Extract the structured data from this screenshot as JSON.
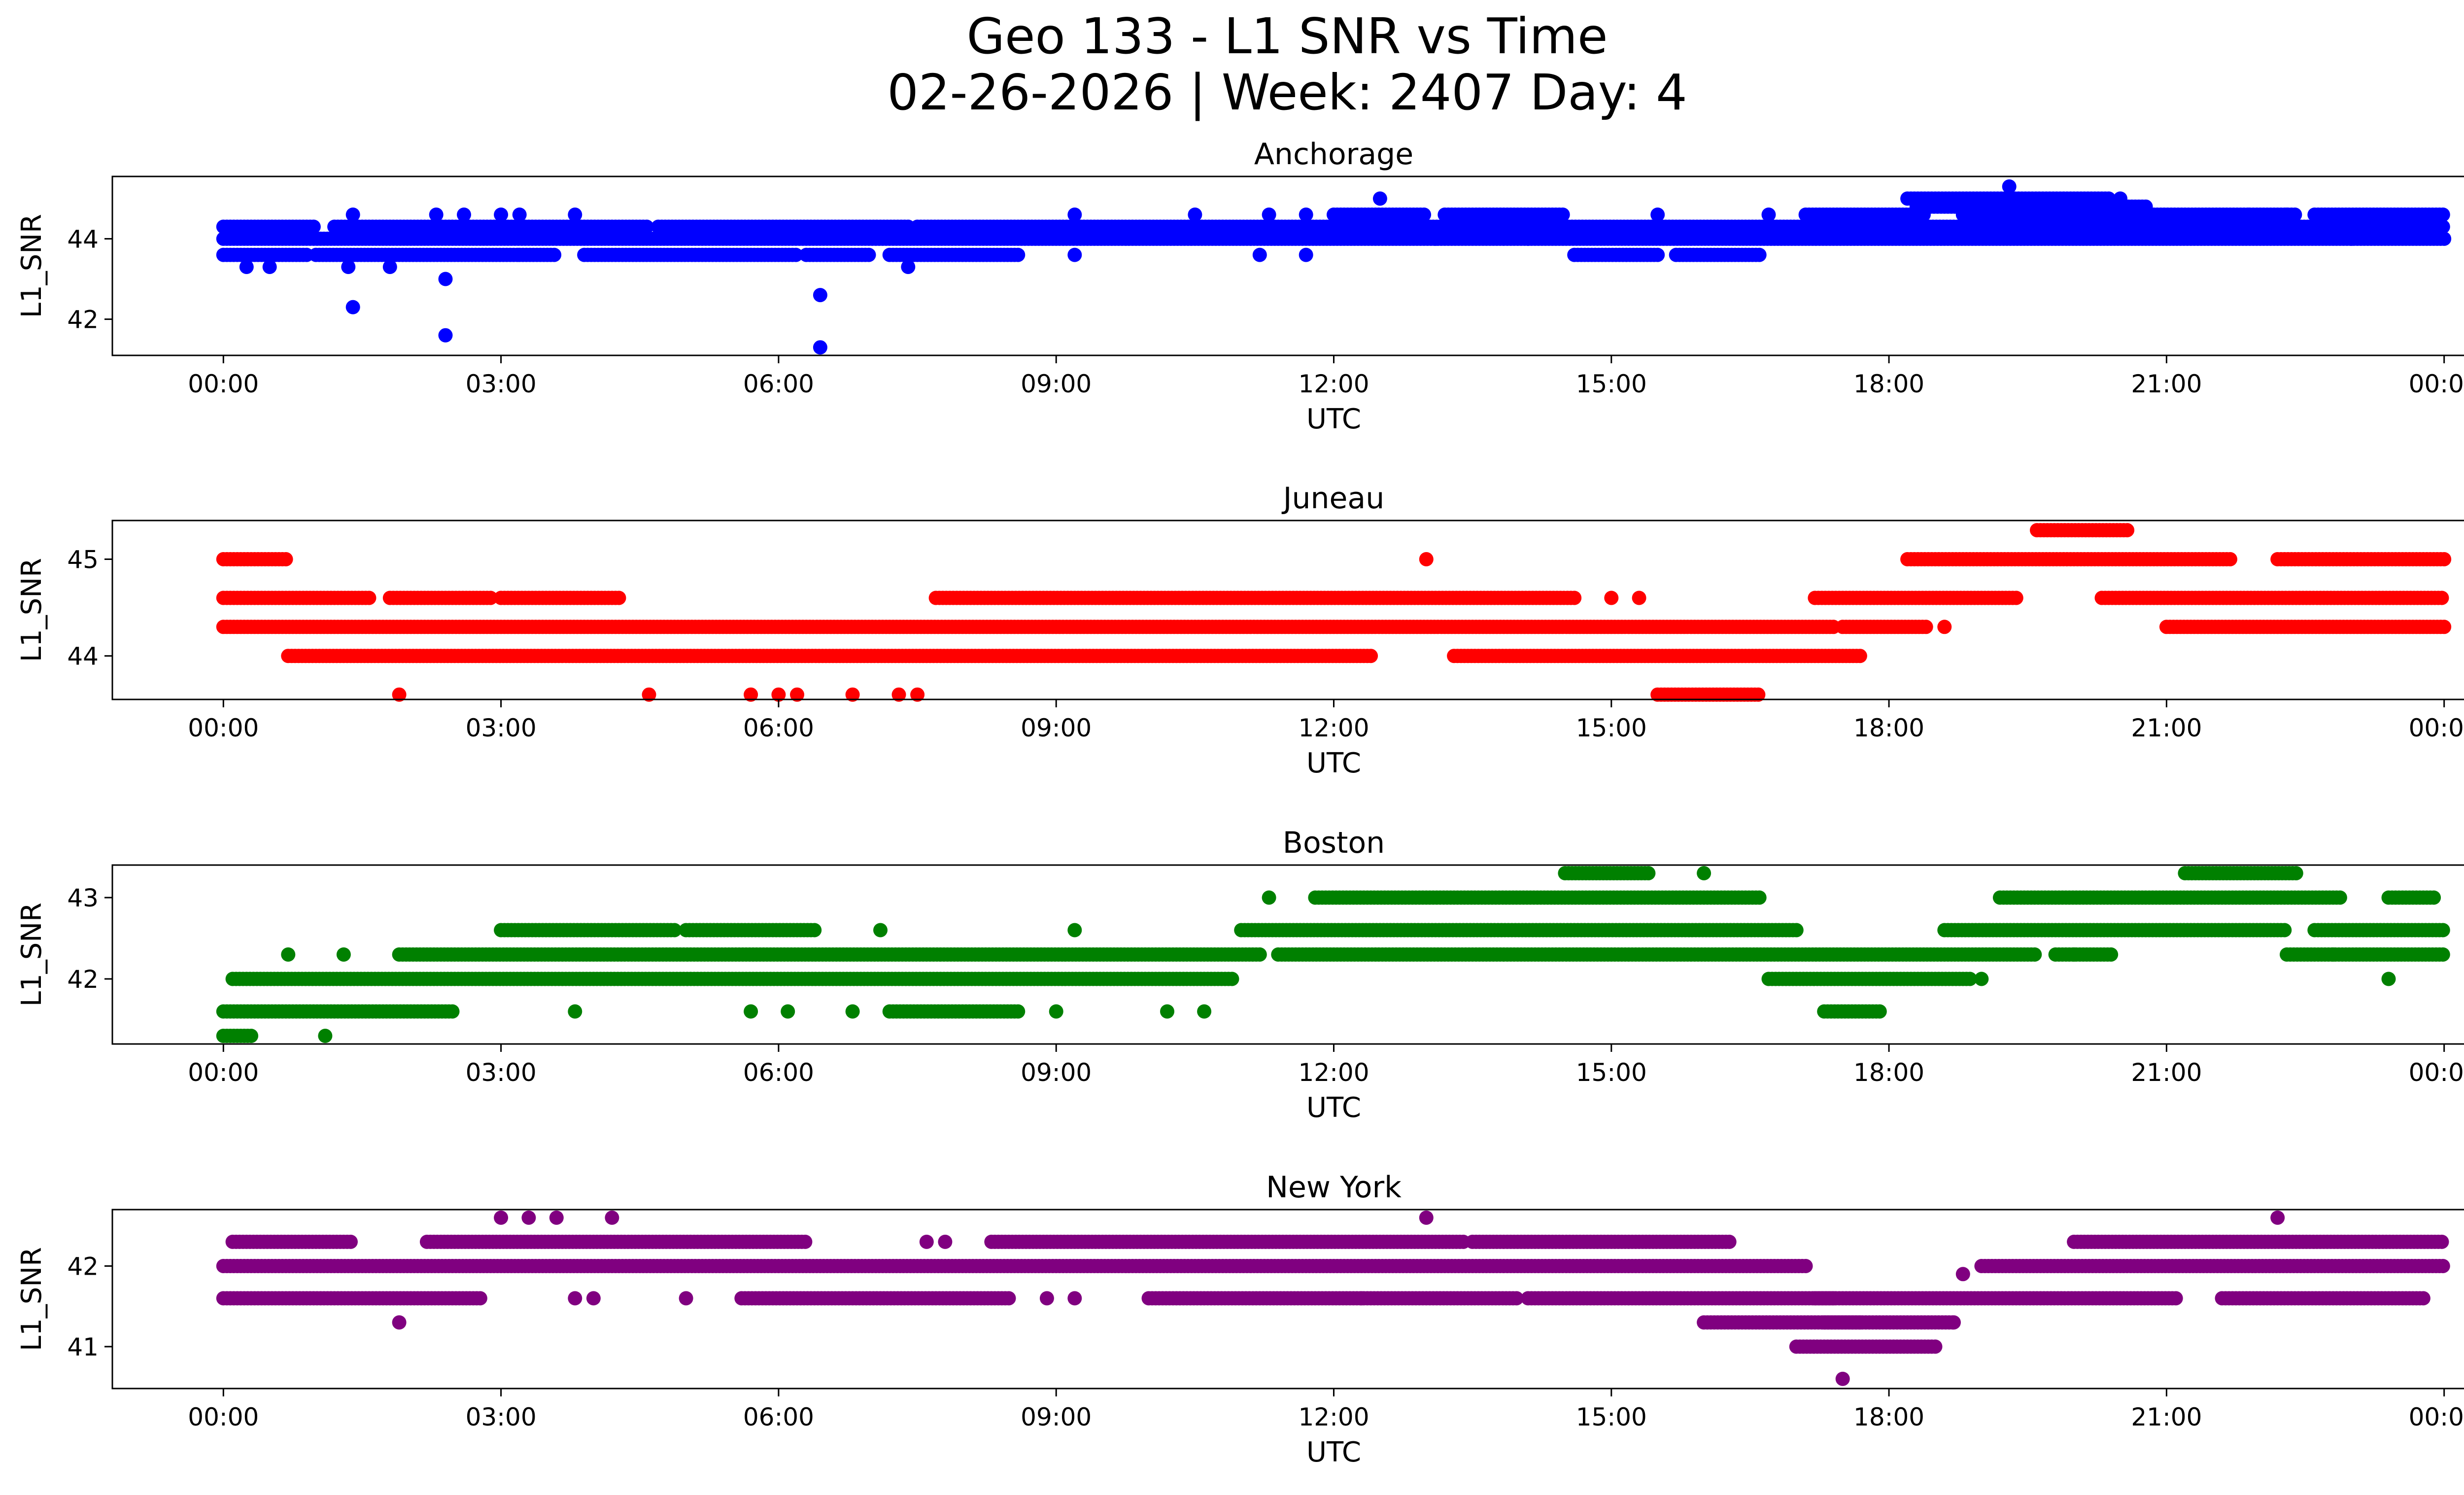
{
  "figure": {
    "title_line1": "Geo 133 - L1 SNR vs Time",
    "title_line2": "02-26-2026 | Week: 2407 Day: 4"
  },
  "chart_data": [
    {
      "type": "scatter",
      "title": "Anchorage",
      "xlabel": "UTC",
      "ylabel": "L1_SNR",
      "color": "#0000ff",
      "xlim": [
        -1.2,
        25.2
      ],
      "ylim": [
        41.1,
        45.55
      ],
      "xticks": [
        0,
        3,
        6,
        9,
        12,
        15,
        18,
        21,
        24
      ],
      "xtick_labels": [
        "00:00",
        "03:00",
        "06:00",
        "09:00",
        "12:00",
        "15:00",
        "18:00",
        "21:00",
        "00:00"
      ],
      "yticks": [
        42,
        44
      ],
      "bands": [
        {
          "y": 44.3,
          "segments": [
            [
              0,
              1.0
            ],
            [
              1.2,
              4.6
            ],
            [
              4.7,
              7.4
            ],
            [
              7.5,
              12.3
            ],
            [
              12.4,
              24
            ]
          ]
        },
        {
          "y": 44.0,
          "segments": [
            [
              0,
              24
            ]
          ]
        },
        {
          "y": 43.6,
          "segments": [
            [
              0,
              0.9
            ],
            [
              1.0,
              3.2
            ],
            [
              3.2,
              3.6
            ],
            [
              3.9,
              6.2
            ],
            [
              6.3,
              7.0
            ],
            [
              7.2,
              8.6
            ],
            [
              14.6,
              15.5
            ],
            [
              15.7,
              16.6
            ]
          ]
        },
        {
          "y": 44.6,
          "segments": [
            [
              12.0,
              13.0
            ],
            [
              13.2,
              14.5
            ],
            [
              17.1,
              18.4
            ],
            [
              18.8,
              21.9
            ],
            [
              21.9,
              22.4
            ],
            [
              22.6,
              24
            ]
          ]
        },
        {
          "y": 45.0,
          "segments": [
            [
              18.2,
              20.4
            ]
          ]
        },
        {
          "y": 44.8,
          "segments": [
            [
              18.3,
              20.8
            ]
          ]
        }
      ],
      "points": [
        {
          "x": 0.25,
          "y": 43.3
        },
        {
          "x": 0.5,
          "y": 43.3
        },
        {
          "x": 1.35,
          "y": 43.3
        },
        {
          "x": 1.8,
          "y": 43.3
        },
        {
          "x": 7.4,
          "y": 43.3
        },
        {
          "x": 1.4,
          "y": 42.3
        },
        {
          "x": 2.4,
          "y": 43.0
        },
        {
          "x": 2.4,
          "y": 41.6
        },
        {
          "x": 6.45,
          "y": 42.6
        },
        {
          "x": 6.45,
          "y": 41.3
        },
        {
          "x": 1.4,
          "y": 44.6
        },
        {
          "x": 2.3,
          "y": 44.6
        },
        {
          "x": 2.6,
          "y": 44.6
        },
        {
          "x": 3.0,
          "y": 44.6
        },
        {
          "x": 3.2,
          "y": 44.6
        },
        {
          "x": 3.8,
          "y": 44.6
        },
        {
          "x": 9.2,
          "y": 44.6
        },
        {
          "x": 10.5,
          "y": 44.6
        },
        {
          "x": 11.3,
          "y": 44.6
        },
        {
          "x": 11.7,
          "y": 44.6
        },
        {
          "x": 12.5,
          "y": 45.0
        },
        {
          "x": 15.5,
          "y": 44.6
        },
        {
          "x": 16.7,
          "y": 44.6
        },
        {
          "x": 19.3,
          "y": 45.3
        },
        {
          "x": 20.5,
          "y": 45.0
        },
        {
          "x": 20.1,
          "y": 44.3
        },
        {
          "x": 22.3,
          "y": 44.6
        },
        {
          "x": 11.2,
          "y": 43.6
        },
        {
          "x": 11.7,
          "y": 43.6
        },
        {
          "x": 9.2,
          "y": 43.6
        },
        {
          "x": 13.1,
          "y": 44.0
        },
        {
          "x": 14.1,
          "y": 44.0
        },
        {
          "x": 19.5,
          "y": 44.3
        },
        {
          "x": 23.0,
          "y": 44.0
        }
      ]
    },
    {
      "type": "scatter",
      "title": "Juneau",
      "xlabel": "UTC",
      "ylabel": "L1_SNR",
      "color": "#ff0000",
      "xlim": [
        -1.2,
        25.2
      ],
      "ylim": [
        43.55,
        45.4
      ],
      "xticks": [
        0,
        3,
        6,
        9,
        12,
        15,
        18,
        21,
        24
      ],
      "xtick_labels": [
        "00:00",
        "03:00",
        "06:00",
        "09:00",
        "12:00",
        "15:00",
        "18:00",
        "21:00",
        "00:00"
      ],
      "yticks": [
        44,
        45
      ],
      "bands": [
        {
          "y": 44.3,
          "segments": [
            [
              0,
              17.4
            ],
            [
              17.5,
              18.4
            ],
            [
              21.0,
              24
            ]
          ]
        },
        {
          "y": 44.0,
          "segments": [
            [
              0.7,
              12.4
            ],
            [
              13.3,
              17.7
            ]
          ]
        },
        {
          "y": 44.6,
          "segments": [
            [
              0,
              1.6
            ],
            [
              1.8,
              2.9
            ],
            [
              3.0,
              4.3
            ],
            [
              7.7,
              14.6
            ],
            [
              17.2,
              19.4
            ],
            [
              20.3,
              24
            ]
          ]
        },
        {
          "y": 45.0,
          "segments": [
            [
              0,
              0.7
            ],
            [
              18.2,
              21.7
            ],
            [
              22.2,
              24
            ]
          ]
        },
        {
          "y": 45.3,
          "segments": [
            [
              19.6,
              20.6
            ]
          ]
        },
        {
          "y": 43.6,
          "segments": [
            [
              15.5,
              16.6
            ]
          ]
        }
      ],
      "points": [
        {
          "x": 1.9,
          "y": 43.6
        },
        {
          "x": 4.6,
          "y": 43.6
        },
        {
          "x": 5.7,
          "y": 43.6
        },
        {
          "x": 6.0,
          "y": 43.6
        },
        {
          "x": 6.2,
          "y": 43.6
        },
        {
          "x": 6.8,
          "y": 43.6
        },
        {
          "x": 7.3,
          "y": 43.6
        },
        {
          "x": 7.5,
          "y": 43.6
        },
        {
          "x": 13.0,
          "y": 45.0
        },
        {
          "x": 18.6,
          "y": 44.3
        },
        {
          "x": 15.0,
          "y": 44.6
        },
        {
          "x": 15.3,
          "y": 44.6
        }
      ]
    },
    {
      "type": "scatter",
      "title": "Boston",
      "xlabel": "UTC",
      "ylabel": "L1_SNR",
      "color": "#008000",
      "xlim": [
        -1.2,
        25.2
      ],
      "ylim": [
        41.2,
        43.4
      ],
      "xticks": [
        0,
        3,
        6,
        9,
        12,
        15,
        18,
        21,
        24
      ],
      "xtick_labels": [
        "00:00",
        "03:00",
        "06:00",
        "09:00",
        "12:00",
        "15:00",
        "18:00",
        "21:00",
        "00:00"
      ],
      "yticks": [
        42,
        43
      ],
      "bands": [
        {
          "y": 42.0,
          "segments": [
            [
              0.1,
              10.9
            ],
            [
              16.7,
              18.9
            ]
          ]
        },
        {
          "y": 41.6,
          "segments": [
            [
              0,
              2.5
            ],
            [
              7.2,
              8.6
            ],
            [
              17.3,
              17.9
            ]
          ]
        },
        {
          "y": 41.3,
          "segments": [
            [
              0,
              0.3
            ]
          ]
        },
        {
          "y": 42.3,
          "segments": [
            [
              1.9,
              11.2
            ],
            [
              11.4,
              19.6
            ],
            [
              19.8,
              20.4
            ],
            [
              22.3,
              24
            ]
          ]
        },
        {
          "y": 42.6,
          "segments": [
            [
              3.0,
              4.9
            ],
            [
              5.0,
              6.4
            ],
            [
              11.0,
              17.0
            ],
            [
              18.6,
              22.3
            ],
            [
              22.6,
              24
            ]
          ]
        },
        {
          "y": 43.0,
          "segments": [
            [
              11.8,
              16.6
            ],
            [
              19.2,
              22.9
            ],
            [
              23.4,
              23.9
            ]
          ]
        },
        {
          "y": 43.3,
          "segments": [
            [
              14.5,
              15.4
            ],
            [
              21.2,
              22.4
            ]
          ]
        }
      ],
      "points": [
        {
          "x": 0.7,
          "y": 42.3
        },
        {
          "x": 1.3,
          "y": 42.3
        },
        {
          "x": 1.1,
          "y": 41.3
        },
        {
          "x": 3.8,
          "y": 41.6
        },
        {
          "x": 5.7,
          "y": 41.6
        },
        {
          "x": 6.1,
          "y": 41.6
        },
        {
          "x": 6.8,
          "y": 41.6
        },
        {
          "x": 9.0,
          "y": 41.6
        },
        {
          "x": 10.2,
          "y": 41.6
        },
        {
          "x": 10.6,
          "y": 41.6
        },
        {
          "x": 11.3,
          "y": 43.0
        },
        {
          "x": 16.0,
          "y": 43.3
        },
        {
          "x": 7.1,
          "y": 42.6
        },
        {
          "x": 9.2,
          "y": 42.6
        },
        {
          "x": 23.4,
          "y": 42.0
        },
        {
          "x": 20.0,
          "y": 42.3
        },
        {
          "x": 22.8,
          "y": 42.3
        },
        {
          "x": 19.0,
          "y": 42.0
        }
      ]
    },
    {
      "type": "scatter",
      "title": "New York",
      "xlabel": "UTC",
      "ylabel": "L1_SNR",
      "color": "#800080",
      "xlim": [
        -1.2,
        25.2
      ],
      "ylim": [
        40.48,
        42.7
      ],
      "xticks": [
        0,
        3,
        6,
        9,
        12,
        15,
        18,
        21,
        24
      ],
      "xtick_labels": [
        "00:00",
        "03:00",
        "06:00",
        "09:00",
        "12:00",
        "15:00",
        "18:00",
        "21:00",
        "00:00"
      ],
      "yticks": [
        41,
        42
      ],
      "bands": [
        {
          "y": 42.0,
          "segments": [
            [
              0,
              17.1
            ],
            [
              19.0,
              24
            ]
          ]
        },
        {
          "y": 42.3,
          "segments": [
            [
              0.1,
              1.4
            ],
            [
              2.2,
              6.3
            ],
            [
              8.3,
              13.4
            ],
            [
              13.5,
              16.3
            ],
            [
              20.0,
              24
            ]
          ]
        },
        {
          "y": 41.6,
          "segments": [
            [
              0,
              2.8
            ],
            [
              5.6,
              8.5
            ],
            [
              10.0,
              14.0
            ],
            [
              14.1,
              17.4
            ],
            [
              17.2,
              21.1
            ],
            [
              21.6,
              23.8
            ]
          ]
        },
        {
          "y": 41.3,
          "segments": [
            [
              16.0,
              17.7
            ],
            [
              17.3,
              18.7
            ]
          ]
        },
        {
          "y": 41.0,
          "segments": [
            [
              17.0,
              18.5
            ]
          ]
        }
      ],
      "points": [
        {
          "x": 1.9,
          "y": 41.3
        },
        {
          "x": 3.0,
          "y": 42.6
        },
        {
          "x": 3.3,
          "y": 42.6
        },
        {
          "x": 3.6,
          "y": 42.6
        },
        {
          "x": 4.2,
          "y": 42.6
        },
        {
          "x": 13.0,
          "y": 42.6
        },
        {
          "x": 22.2,
          "y": 42.6
        },
        {
          "x": 17.5,
          "y": 40.6
        },
        {
          "x": 18.7,
          "y": 41.3
        },
        {
          "x": 18.8,
          "y": 41.9
        },
        {
          "x": 3.8,
          "y": 41.6
        },
        {
          "x": 4.0,
          "y": 41.6
        },
        {
          "x": 5.0,
          "y": 41.6
        },
        {
          "x": 9.2,
          "y": 41.6
        },
        {
          "x": 8.9,
          "y": 41.6
        },
        {
          "x": 7.6,
          "y": 42.3
        },
        {
          "x": 7.8,
          "y": 42.3
        },
        {
          "x": 12.3,
          "y": 41.6
        }
      ]
    }
  ]
}
